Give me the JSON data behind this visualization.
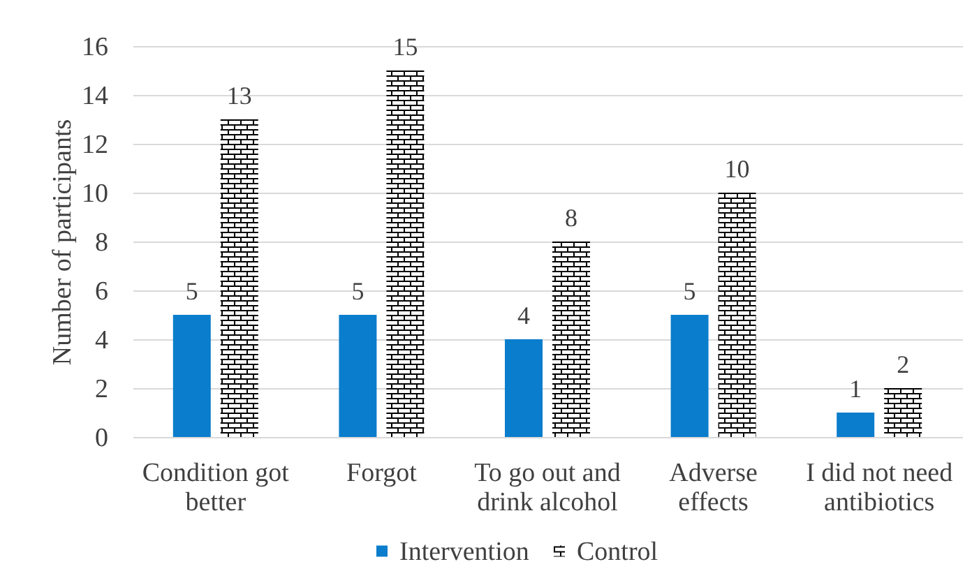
{
  "chart_data": {
    "type": "bar",
    "ylabel": "Number of participants",
    "categories": [
      "Condition got better",
      "Forgot",
      "To go out and drink alcohol",
      "Adverse effects",
      "I did not need antibiotics"
    ],
    "series": [
      {
        "name": "Intervention",
        "color": "#0a7dcc",
        "values": [
          5,
          5,
          4,
          5,
          1
        ]
      },
      {
        "name": "Control",
        "color": "#000000",
        "values": [
          13,
          15,
          8,
          10,
          2
        ]
      }
    ],
    "ylim": [
      0,
      16
    ],
    "yticks": [
      0,
      2,
      4,
      6,
      8,
      10,
      12,
      14,
      16
    ],
    "grid": "y",
    "legend": "bottom",
    "data_labels": true
  }
}
